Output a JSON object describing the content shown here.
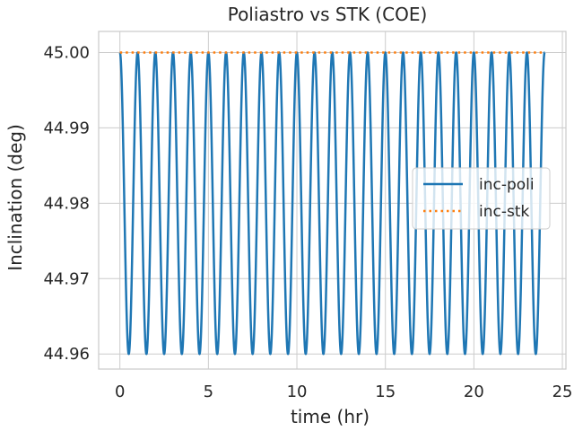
{
  "chart_data": {
    "type": "line",
    "title": "Poliastro vs STK (COE)",
    "xlabel": "time (hr)",
    "ylabel": "Inclination (deg)",
    "xlim": [
      -1.2,
      25.2
    ],
    "ylim": [
      44.958,
      45.0028
    ],
    "xticks": [
      0,
      5,
      10,
      15,
      20,
      25
    ],
    "xtick_labels": [
      "0",
      "5",
      "10",
      "15",
      "20",
      "25"
    ],
    "yticks": [
      44.96,
      44.97,
      44.98,
      44.99,
      45.0
    ],
    "ytick_labels": [
      "44.96",
      "44.97",
      "44.98",
      "44.99",
      "45.00"
    ],
    "grid": true,
    "legend_position": "center-right",
    "series": [
      {
        "name": "inc-poli",
        "style": "solid",
        "color": "#1f77b4",
        "x_start": 0,
        "x_end": 24,
        "period_hr": 0.9999,
        "oscillations_per_period": 1,
        "y_max": 45.0,
        "y_min": 44.96,
        "description_of_shape": "oscillation"
      },
      {
        "name": "inc-stk",
        "style": "dotted",
        "color": "#ff7f0e",
        "x": [
          0,
          24
        ],
        "y": [
          45.0,
          45.0
        ]
      }
    ]
  }
}
